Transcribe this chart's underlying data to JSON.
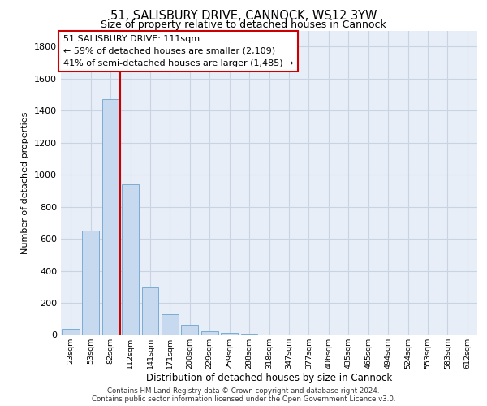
{
  "title_line1": "51, SALISBURY DRIVE, CANNOCK, WS12 3YW",
  "title_line2": "Size of property relative to detached houses in Cannock",
  "xlabel": "Distribution of detached houses by size in Cannock",
  "ylabel": "Number of detached properties",
  "categories": [
    "23sqm",
    "53sqm",
    "82sqm",
    "112sqm",
    "141sqm",
    "171sqm",
    "200sqm",
    "229sqm",
    "259sqm",
    "288sqm",
    "318sqm",
    "347sqm",
    "377sqm",
    "406sqm",
    "435sqm",
    "465sqm",
    "494sqm",
    "524sqm",
    "553sqm",
    "583sqm",
    "612sqm"
  ],
  "bar_values": [
    40,
    650,
    1470,
    940,
    295,
    130,
    62,
    22,
    12,
    8,
    5,
    3,
    2,
    1,
    0,
    0,
    0,
    0,
    0,
    0,
    0
  ],
  "bar_color": "#c6d9ee",
  "bar_edge_color": "#7aadd4",
  "vline_color": "#cc0000",
  "annotation_text": "51 SALISBURY DRIVE: 111sqm\n← 59% of detached houses are smaller (2,109)\n41% of semi-detached houses are larger (1,485) →",
  "annotation_box_edgecolor": "#cc0000",
  "annotation_bg": "#ffffff",
  "ylim_max": 1900,
  "yticks": [
    0,
    200,
    400,
    600,
    800,
    1000,
    1200,
    1400,
    1600,
    1800
  ],
  "grid_color": "#c8d4e4",
  "footer_text": "Contains HM Land Registry data © Crown copyright and database right 2024.\nContains public sector information licensed under the Open Government Licence v3.0.",
  "plot_bg_color": "#e8eef8"
}
